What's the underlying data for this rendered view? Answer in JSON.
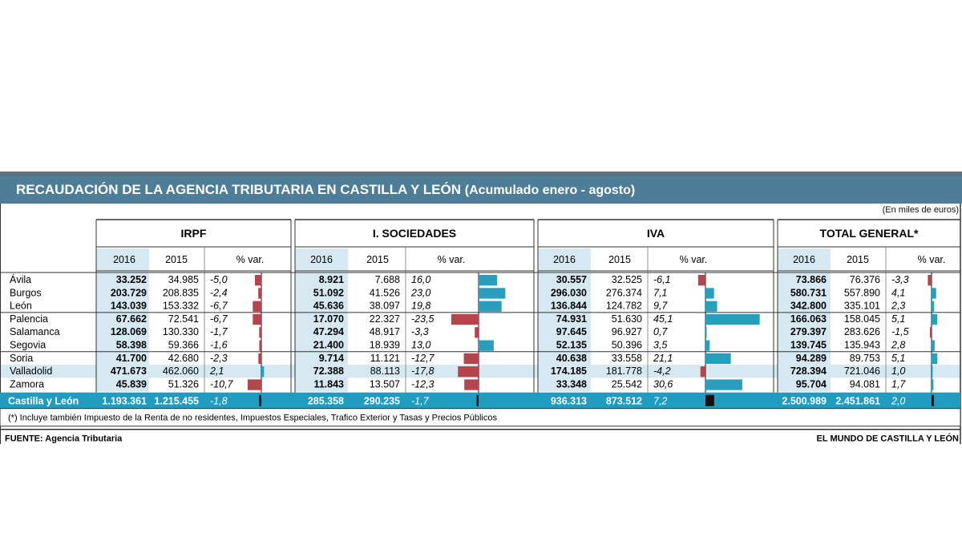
{
  "title": "RECAUDACIÓN DE LA AGENCIA TRIBUTARIA EN CASTILLA Y LEÓN",
  "subtitle": "(Acumulado enero - agosto)",
  "units": "(En miles de euros)",
  "chart_data": {
    "type": "table",
    "groups": [
      "IRPF",
      "I. SOCIEDADES",
      "IVA",
      "TOTAL GENERAL*"
    ],
    "year_labels": [
      "2016",
      "2015",
      "% var."
    ],
    "provinces": [
      "Ávila",
      "Burgos",
      "León",
      "Palencia",
      "Salamanca",
      "Segovia",
      "Soria",
      "Valladolid",
      "Zamora"
    ],
    "rows": [
      {
        "province": "Ávila",
        "irpf": [
          "33.252",
          "34.985",
          "-5,0"
        ],
        "soc": [
          "8.921",
          "7.688",
          "16,0"
        ],
        "iva": [
          "30.557",
          "32.525",
          "-6,1"
        ],
        "total": [
          "73.866",
          "76.376",
          "-3,3"
        ]
      },
      {
        "province": "Burgos",
        "irpf": [
          "203.729",
          "208.835",
          "-2,4"
        ],
        "soc": [
          "51.092",
          "41.526",
          "23,0"
        ],
        "iva": [
          "296.030",
          "276.374",
          "7,1"
        ],
        "total": [
          "580.731",
          "557.890",
          "4,1"
        ]
      },
      {
        "province": "León",
        "irpf": [
          "143.039",
          "153.332",
          "-6,7"
        ],
        "soc": [
          "45.636",
          "38.097",
          "19,8"
        ],
        "iva": [
          "136.844",
          "124.782",
          "9,7"
        ],
        "total": [
          "342.800",
          "335.101",
          "2,3"
        ]
      },
      {
        "province": "Palencia",
        "irpf": [
          "67.662",
          "72.541",
          "-6,7"
        ],
        "soc": [
          "17.070",
          "22.327",
          "-23,5"
        ],
        "iva": [
          "74.931",
          "51.630",
          "45,1"
        ],
        "total": [
          "166.063",
          "158.045",
          "5,1"
        ]
      },
      {
        "province": "Salamanca",
        "irpf": [
          "128.069",
          "130.330",
          "-1,7"
        ],
        "soc": [
          "47.294",
          "48.917",
          "-3,3"
        ],
        "iva": [
          "97.645",
          "96.927",
          "0,7"
        ],
        "total": [
          "279.397",
          "283.626",
          "-1,5"
        ]
      },
      {
        "province": "Segovia",
        "irpf": [
          "58.398",
          "59.366",
          "-1,6"
        ],
        "soc": [
          "21.400",
          "18.939",
          "13,0"
        ],
        "iva": [
          "52.135",
          "50.396",
          "3,5"
        ],
        "total": [
          "139.745",
          "135.943",
          "2,8"
        ]
      },
      {
        "province": "Soria",
        "irpf": [
          "41.700",
          "42.680",
          "-2,3"
        ],
        "soc": [
          "9.714",
          "11.121",
          "-12,7"
        ],
        "iva": [
          "40.638",
          "33.558",
          "21,1"
        ],
        "total": [
          "94.289",
          "89.753",
          "5,1"
        ]
      },
      {
        "province": "Valladolid",
        "irpf": [
          "471.673",
          "462.060",
          "2,1"
        ],
        "soc": [
          "72.388",
          "88.113",
          "-17,8"
        ],
        "iva": [
          "174.185",
          "181.778",
          "-4,2"
        ],
        "total": [
          "728.394",
          "721.046",
          "1,0"
        ]
      },
      {
        "province": "Zamora",
        "irpf": [
          "45.839",
          "51.326",
          "-10,7"
        ],
        "soc": [
          "11.843",
          "13.507",
          "-12,3"
        ],
        "iva": [
          "33.348",
          "25.542",
          "30,6"
        ],
        "total": [
          "95.704",
          "94.081",
          "1,7"
        ]
      }
    ],
    "total_row": {
      "province": "Castilla y León",
      "irpf": [
        "1.193.361",
        "1.215.455",
        "-1,8"
      ],
      "soc": [
        "285.358",
        "290.235",
        "-1,7"
      ],
      "iva": [
        "936.313",
        "873.512",
        "7,2"
      ],
      "total": [
        "2.500.989",
        "2.451.861",
        "2,0"
      ]
    }
  },
  "colors": {
    "header_bar": "#4d7d97",
    "positive": "#2a9fbd",
    "negative": "#b5444c",
    "highlight": "#d7e9f3",
    "total_row": "#1f9cc0",
    "total_bar": "#111111"
  },
  "footnote": "(*) Incluye también Impuesto de la Renta de no residentes, Impuestos Especiales, Trafico Exterior y Tasas y Precios Públicos",
  "source": "FUENTE:  Agencia Tributaria",
  "credit": "EL MUNDO DE CASTILLA Y LEÓN"
}
